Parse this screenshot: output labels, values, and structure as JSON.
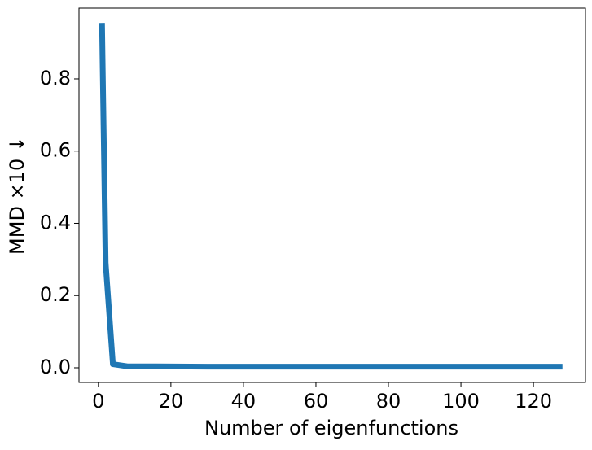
{
  "chart_data": {
    "type": "line",
    "x_label": "Number of eigenfunctions",
    "y_label": "MMD ×10 ↓",
    "x": [
      1,
      2,
      4,
      8,
      16,
      32,
      64,
      128
    ],
    "series": [
      {
        "color": "#1f77b4",
        "values": [
          0.955,
          0.29,
          0.01,
          0.004,
          0.004,
          0.003,
          0.003,
          0.003
        ]
      }
    ],
    "xlim": [
      -5.35,
      134.35
    ],
    "xticks": [
      0,
      20,
      40,
      60,
      80,
      100,
      120
    ],
    "ylim": [
      -0.0406,
      0.996
    ],
    "yticks": [
      0.0,
      0.2,
      0.4,
      0.6,
      0.8
    ]
  }
}
